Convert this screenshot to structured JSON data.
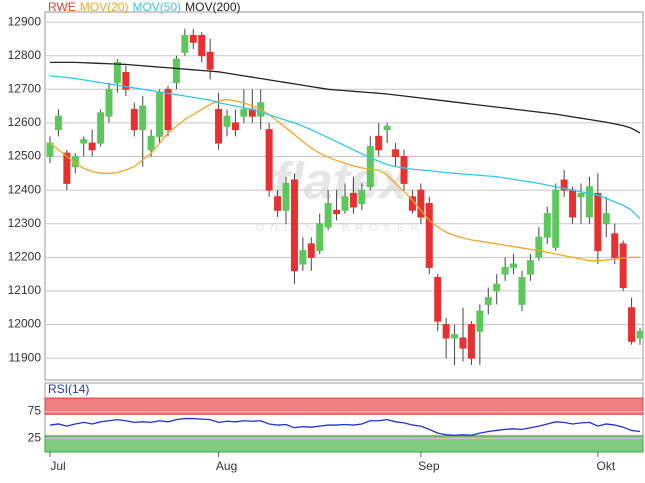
{
  "chart_data": [
    {
      "type": "candlestick",
      "categories": [
        "Jul",
        null,
        null,
        null,
        null,
        null,
        null,
        null,
        null,
        null,
        null,
        null,
        null,
        null,
        null,
        null,
        null,
        null,
        null,
        null,
        "Aug",
        null,
        null,
        null,
        null,
        null,
        null,
        null,
        null,
        null,
        null,
        null,
        null,
        null,
        null,
        null,
        null,
        null,
        null,
        null,
        null,
        null,
        null,
        null,
        "Sep",
        null,
        null,
        null,
        null,
        null,
        null,
        null,
        null,
        null,
        null,
        null,
        null,
        null,
        null,
        null,
        null,
        null,
        null,
        null,
        null,
        "Okt",
        null,
        null,
        null,
        null,
        null
      ],
      "ylim": [
        11835,
        12930
      ],
      "yticks": [
        11900,
        12000,
        12100,
        12200,
        12300,
        12400,
        12500,
        12600,
        12700,
        12800,
        12900
      ],
      "grid": true,
      "watermark": "flatex",
      "watermark_subtitle": "ONLINE BROKER",
      "series": [
        {
          "name": "RWE",
          "type": "candlestick",
          "color": "#e8402a",
          "up_color": "#5cc85c",
          "down_color": "#e83030",
          "open": [
            12500,
            12580,
            12510,
            12470,
            12540,
            12540,
            12540,
            12620,
            12720,
            12750,
            12640,
            12580,
            12520,
            12560,
            12700,
            12720,
            12810,
            12860,
            12860,
            12810,
            12640,
            12590,
            12600,
            12620,
            12640,
            12620,
            12580,
            12380,
            12340,
            12430,
            12180,
            12240,
            12220,
            12290,
            12340,
            12340,
            12390,
            12360,
            12410,
            12560,
            12580,
            12520,
            12500,
            12380,
            12400,
            12360,
            12140,
            12000,
            11960,
            11960,
            12000,
            11980,
            12060,
            12100,
            12150,
            12170,
            12060,
            12150,
            12200,
            12260,
            12230,
            12430,
            12400,
            12380,
            12320,
            12390,
            12300,
            12270,
            12240,
            12050,
            11960
          ],
          "high": [
            12560,
            12640,
            12520,
            12510,
            12560,
            12580,
            12640,
            12720,
            12790,
            12770,
            12660,
            12680,
            12580,
            12700,
            12710,
            12800,
            12880,
            12880,
            12870,
            12850,
            12690,
            12640,
            12640,
            12700,
            12700,
            12700,
            12600,
            12400,
            12440,
            12450,
            12260,
            12260,
            12330,
            12400,
            12400,
            12420,
            12440,
            12420,
            12560,
            12600,
            12600,
            12540,
            12520,
            12400,
            12420,
            12380,
            12150,
            12020,
            12000,
            12050,
            12010,
            12060,
            12110,
            12150,
            12200,
            12210,
            12160,
            12210,
            12290,
            12350,
            12420,
            12460,
            12410,
            12420,
            12440,
            12450,
            12380,
            12300,
            12250,
            12080,
            11990
          ],
          "low": [
            12480,
            12560,
            12400,
            12450,
            12500,
            12500,
            12530,
            12600,
            12690,
            12680,
            12560,
            12470,
            12500,
            12540,
            12560,
            12700,
            12800,
            12820,
            12780,
            12730,
            12520,
            12560,
            12560,
            12600,
            12600,
            12580,
            12380,
            12320,
            12300,
            12120,
            12160,
            12160,
            12210,
            12280,
            12310,
            12330,
            12330,
            12340,
            12400,
            12500,
            12540,
            12470,
            12400,
            12330,
            12300,
            12150,
            11980,
            11900,
            11880,
            11890,
            11880,
            11880,
            12030,
            12060,
            12130,
            12150,
            12040,
            12130,
            12190,
            12240,
            12220,
            12380,
            12300,
            12300,
            12300,
            12180,
            12260,
            12180,
            12100,
            11940,
            11940
          ],
          "close": [
            12540,
            12620,
            12420,
            12500,
            12550,
            12520,
            12630,
            12700,
            12780,
            12700,
            12580,
            12650,
            12560,
            12690,
            12580,
            12790,
            12860,
            12840,
            12800,
            12760,
            12540,
            12620,
            12580,
            12640,
            12620,
            12660,
            12400,
            12340,
            12420,
            12160,
            12220,
            12200,
            12300,
            12360,
            12330,
            12380,
            12350,
            12400,
            12530,
            12520,
            12590,
            12500,
            12420,
            12340,
            12320,
            12170,
            12010,
            11960,
            11970,
            11930,
            11900,
            12040,
            12080,
            12120,
            12170,
            12180,
            12140,
            12190,
            12260,
            12330,
            12400,
            12400,
            12320,
            12390,
            12410,
            12220,
            12330,
            12200,
            12110,
            11950,
            11980
          ]
        },
        {
          "name": "MOV(20)",
          "type": "line",
          "color": "#f5a623",
          "values": [
            12540,
            12520,
            12500,
            12480,
            12465,
            12455,
            12450,
            12450,
            12452,
            12460,
            12470,
            12490,
            12510,
            12540,
            12570,
            12590,
            12610,
            12625,
            12640,
            12655,
            12665,
            12670,
            12665,
            12660,
            12650,
            12640,
            12625,
            12605,
            12585,
            12565,
            12545,
            12525,
            12510,
            12498,
            12488,
            12480,
            12472,
            12466,
            12462,
            12460,
            12445,
            12420,
            12395,
            12370,
            12340,
            12310,
            12290,
            12275,
            12265,
            12258,
            12252,
            12248,
            12244,
            12240,
            12236,
            12232,
            12228,
            12224,
            12220,
            12215,
            12210,
            12205,
            12200,
            12195,
            12190,
            12190,
            12192,
            12195,
            12198,
            12200,
            12200
          ]
        },
        {
          "name": "MOV(50)",
          "type": "line",
          "color": "#35c8e6",
          "values": [
            12740,
            12738,
            12735,
            12732,
            12728,
            12724,
            12720,
            12716,
            12712,
            12708,
            12704,
            12700,
            12696,
            12692,
            12688,
            12684,
            12680,
            12676,
            12672,
            12668,
            12660,
            12655,
            12650,
            12645,
            12640,
            12632,
            12624,
            12616,
            12608,
            12600,
            12590,
            12580,
            12568,
            12556,
            12544,
            12532,
            12520,
            12508,
            12496,
            12486,
            12476,
            12470,
            12466,
            12462,
            12460,
            12458,
            12455,
            12452,
            12450,
            12448,
            12446,
            12444,
            12442,
            12440,
            12436,
            12432,
            12428,
            12424,
            12420,
            12415,
            12410,
            12405,
            12400,
            12395,
            12390,
            12385,
            12375,
            12365,
            12355,
            12340,
            12315
          ]
        },
        {
          "name": "MOV(200)",
          "type": "line",
          "color": "#222222",
          "values": [
            12780,
            12780,
            12780,
            12780,
            12779,
            12778,
            12777,
            12776,
            12775,
            12774,
            12772,
            12770,
            12768,
            12766,
            12764,
            12762,
            12760,
            12758,
            12756,
            12754,
            12752,
            12748,
            12744,
            12740,
            12736,
            12732,
            12728,
            12724,
            12720,
            12716,
            12712,
            12708,
            12704,
            12700,
            12698,
            12696,
            12694,
            12692,
            12690,
            12688,
            12686,
            12683,
            12680,
            12677,
            12674,
            12671,
            12668,
            12665,
            12662,
            12659,
            12656,
            12653,
            12650,
            12647,
            12644,
            12641,
            12638,
            12635,
            12632,
            12629,
            12626,
            12622,
            12618,
            12614,
            12610,
            12606,
            12602,
            12597,
            12592,
            12584,
            12570
          ]
        }
      ]
    },
    {
      "type": "line",
      "ylim": [
        0,
        128
      ],
      "yticks": [
        25,
        75
      ],
      "overbought": [
        70,
        100
      ],
      "oversold": [
        0,
        30
      ],
      "series": [
        {
          "name": "RSI(14)",
          "color": "#2233cc",
          "values": [
            50,
            52,
            48,
            52,
            55,
            52,
            56,
            58,
            60,
            58,
            55,
            56,
            55,
            58,
            56,
            60,
            62,
            62,
            61,
            60,
            55,
            57,
            56,
            58,
            57,
            58,
            52,
            50,
            51,
            45,
            47,
            46,
            48,
            50,
            50,
            51,
            50,
            52,
            58,
            58,
            60,
            56,
            54,
            50,
            48,
            42,
            35,
            32,
            31,
            32,
            31,
            35,
            38,
            40,
            42,
            43,
            42,
            45,
            48,
            52,
            56,
            55,
            52,
            54,
            55,
            48,
            52,
            50,
            46,
            40,
            38
          ]
        }
      ]
    }
  ]
}
